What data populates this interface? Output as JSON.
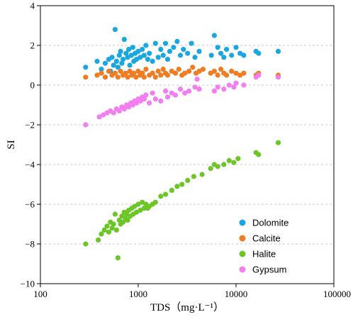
{
  "chart_data": {
    "type": "scatter",
    "xlabel": "TDS（mg·L⁻¹）",
    "ylabel": "SI",
    "x_scale": "log",
    "xlim": [
      100,
      100000
    ],
    "ylim": [
      -10,
      4
    ],
    "x_ticks": [
      100,
      1000,
      10000,
      100000
    ],
    "x_tick_labels": [
      "100",
      "1000",
      "10000",
      "100000"
    ],
    "y_ticks": [
      -10,
      -8,
      -6,
      -4,
      -2,
      0,
      2,
      4
    ],
    "y_tick_labels": [
      "−10",
      "−8",
      "−6",
      "−4",
      "−2",
      "0",
      "2",
      "4"
    ],
    "grid": "horizontal dashed",
    "legend_position": "bottom-right",
    "series": [
      {
        "name": "Dolomite",
        "color": "#1aa7e0",
        "points": [
          [
            290,
            0.9
          ],
          [
            380,
            1.2
          ],
          [
            420,
            0.8
          ],
          [
            460,
            1.1
          ],
          [
            500,
            1.3
          ],
          [
            520,
            0.7
          ],
          [
            540,
            1.4
          ],
          [
            560,
            1.0
          ],
          [
            580,
            2.8
          ],
          [
            600,
            1.2
          ],
          [
            620,
            0.9
          ],
          [
            640,
            1.5
          ],
          [
            660,
            1.7
          ],
          [
            680,
            1.1
          ],
          [
            700,
            1.3
          ],
          [
            720,
            2.3
          ],
          [
            750,
            1.6
          ],
          [
            780,
            1.4
          ],
          [
            800,
            1.8
          ],
          [
            820,
            1.0
          ],
          [
            850,
            1.5
          ],
          [
            880,
            1.9
          ],
          [
            900,
            1.2
          ],
          [
            930,
            1.6
          ],
          [
            960,
            1.3
          ],
          [
            1000,
            1.7
          ],
          [
            1050,
            1.4
          ],
          [
            1100,
            1.8
          ],
          [
            1150,
            1.5
          ],
          [
            1200,
            2.0
          ],
          [
            1250,
            1.3
          ],
          [
            1300,
            1.6
          ],
          [
            1400,
            1.2
          ],
          [
            1500,
            2.1
          ],
          [
            1600,
            1.4
          ],
          [
            1700,
            1.8
          ],
          [
            1800,
            1.5
          ],
          [
            1900,
            2.1
          ],
          [
            2000,
            1.3
          ],
          [
            2100,
            1.7
          ],
          [
            2300,
            1.9
          ],
          [
            2500,
            2.2
          ],
          [
            2700,
            1.5
          ],
          [
            2900,
            1.8
          ],
          [
            3200,
            1.6
          ],
          [
            3500,
            2.1
          ],
          [
            3800,
            1.4
          ],
          [
            4200,
            1.7
          ],
          [
            5600,
            1.5
          ],
          [
            6000,
            2.5
          ],
          [
            6500,
            1.9
          ],
          [
            7000,
            1.6
          ],
          [
            7500,
            1.4
          ],
          [
            8000,
            1.8
          ],
          [
            9000,
            1.5
          ],
          [
            10000,
            1.9
          ],
          [
            11000,
            1.6
          ],
          [
            12000,
            1.5
          ],
          [
            16000,
            1.7
          ],
          [
            17000,
            1.6
          ],
          [
            27000,
            1.7
          ]
        ]
      },
      {
        "name": "Calcite",
        "color": "#f07c22",
        "points": [
          [
            290,
            0.4
          ],
          [
            380,
            0.5
          ],
          [
            420,
            0.6
          ],
          [
            460,
            0.4
          ],
          [
            500,
            0.7
          ],
          [
            540,
            0.5
          ],
          [
            580,
            0.6
          ],
          [
            620,
            0.4
          ],
          [
            660,
            0.7
          ],
          [
            700,
            0.5
          ],
          [
            740,
            0.6
          ],
          [
            780,
            0.4
          ],
          [
            820,
            0.7
          ],
          [
            860,
            0.5
          ],
          [
            900,
            0.6
          ],
          [
            950,
            0.4
          ],
          [
            1000,
            0.7
          ],
          [
            1050,
            0.5
          ],
          [
            1100,
            0.6
          ],
          [
            1150,
            0.4
          ],
          [
            1200,
            0.8
          ],
          [
            1300,
            0.5
          ],
          [
            1400,
            0.6
          ],
          [
            1500,
            0.4
          ],
          [
            1600,
            0.7
          ],
          [
            1700,
            0.5
          ],
          [
            1800,
            0.8
          ],
          [
            1900,
            0.6
          ],
          [
            2000,
            0.5
          ],
          [
            2200,
            0.7
          ],
          [
            2400,
            0.6
          ],
          [
            2600,
            0.8
          ],
          [
            2800,
            0.5
          ],
          [
            3000,
            0.6
          ],
          [
            3300,
            0.7
          ],
          [
            3600,
            0.9
          ],
          [
            3900,
            0.6
          ],
          [
            4200,
            0.7
          ],
          [
            4600,
            0.8
          ],
          [
            5500,
            0.6
          ],
          [
            6000,
            0.7
          ],
          [
            6500,
            0.5
          ],
          [
            7000,
            0.8
          ],
          [
            7500,
            0.6
          ],
          [
            8000,
            0.5
          ],
          [
            9000,
            0.7
          ],
          [
            10000,
            0.6
          ],
          [
            11000,
            0.5
          ],
          [
            12000,
            0.6
          ],
          [
            16000,
            0.5
          ],
          [
            17000,
            0.6
          ],
          [
            27000,
            0.5
          ]
        ]
      },
      {
        "name": "Halite",
        "color": "#6cc626",
        "points": [
          [
            290,
            -8.0
          ],
          [
            390,
            -7.8
          ],
          [
            420,
            -7.5
          ],
          [
            450,
            -7.3
          ],
          [
            480,
            -7.1
          ],
          [
            500,
            -7.4
          ],
          [
            520,
            -6.9
          ],
          [
            540,
            -7.2
          ],
          [
            560,
            -7.0
          ],
          [
            580,
            -6.5
          ],
          [
            600,
            -7.3
          ],
          [
            620,
            -8.7
          ],
          [
            640,
            -6.8
          ],
          [
            660,
            -7.0
          ],
          [
            680,
            -6.6
          ],
          [
            700,
            -6.9
          ],
          [
            720,
            -6.4
          ],
          [
            740,
            -6.7
          ],
          [
            760,
            -6.5
          ],
          [
            780,
            -6.8
          ],
          [
            800,
            -6.3
          ],
          [
            830,
            -6.6
          ],
          [
            860,
            -6.2
          ],
          [
            890,
            -6.5
          ],
          [
            920,
            -6.1
          ],
          [
            960,
            -6.4
          ],
          [
            1000,
            -6.0
          ],
          [
            1050,
            -6.3
          ],
          [
            1100,
            -5.9
          ],
          [
            1150,
            -6.2
          ],
          [
            1200,
            -6.0
          ],
          [
            1250,
            -6.2
          ],
          [
            1300,
            -6.1
          ],
          [
            1400,
            -6.0
          ],
          [
            1500,
            -5.9
          ],
          [
            1700,
            -5.6
          ],
          [
            1900,
            -5.5
          ],
          [
            2200,
            -5.3
          ],
          [
            2500,
            -5.1
          ],
          [
            2800,
            -5.0
          ],
          [
            3200,
            -4.8
          ],
          [
            3700,
            -4.6
          ],
          [
            4500,
            -4.5
          ],
          [
            5500,
            -4.2
          ],
          [
            6000,
            -4.0
          ],
          [
            6500,
            -4.1
          ],
          [
            7500,
            -4.0
          ],
          [
            8500,
            -3.8
          ],
          [
            9500,
            -3.9
          ],
          [
            10500,
            -3.7
          ],
          [
            16000,
            -3.4
          ],
          [
            17000,
            -3.5
          ],
          [
            27000,
            -2.9
          ]
        ]
      },
      {
        "name": "Gypsum",
        "color": "#f27ef2",
        "points": [
          [
            290,
            -2.0
          ],
          [
            400,
            -1.6
          ],
          [
            440,
            -1.5
          ],
          [
            480,
            -1.4
          ],
          [
            520,
            -1.3
          ],
          [
            560,
            -1.4
          ],
          [
            600,
            -1.2
          ],
          [
            640,
            -1.3
          ],
          [
            680,
            -1.1
          ],
          [
            720,
            -1.2
          ],
          [
            760,
            -1.0
          ],
          [
            800,
            -1.1
          ],
          [
            840,
            -0.9
          ],
          [
            880,
            -1.0
          ],
          [
            920,
            -0.8
          ],
          [
            960,
            -0.9
          ],
          [
            1000,
            -0.7
          ],
          [
            1050,
            -0.8
          ],
          [
            1100,
            -0.6
          ],
          [
            1150,
            -0.7
          ],
          [
            1200,
            -0.5
          ],
          [
            1300,
            -0.9
          ],
          [
            1400,
            -0.4
          ],
          [
            1500,
            -0.7
          ],
          [
            1700,
            -0.8
          ],
          [
            1900,
            -0.3
          ],
          [
            2000,
            -0.6
          ],
          [
            2200,
            -0.4
          ],
          [
            2400,
            -0.5
          ],
          [
            2700,
            -0.2
          ],
          [
            3000,
            -0.4
          ],
          [
            3300,
            -0.3
          ],
          [
            3800,
            -0.1
          ],
          [
            4000,
            0.3
          ],
          [
            4200,
            -0.2
          ],
          [
            6000,
            -0.3
          ],
          [
            6500,
            -0.1
          ],
          [
            7500,
            -0.2
          ],
          [
            8500,
            0.0
          ],
          [
            9500,
            -0.1
          ],
          [
            10000,
            0.1
          ],
          [
            12000,
            0.0
          ],
          [
            16000,
            0.4
          ],
          [
            17000,
            0.5
          ],
          [
            27000,
            0.4
          ]
        ]
      }
    ]
  }
}
